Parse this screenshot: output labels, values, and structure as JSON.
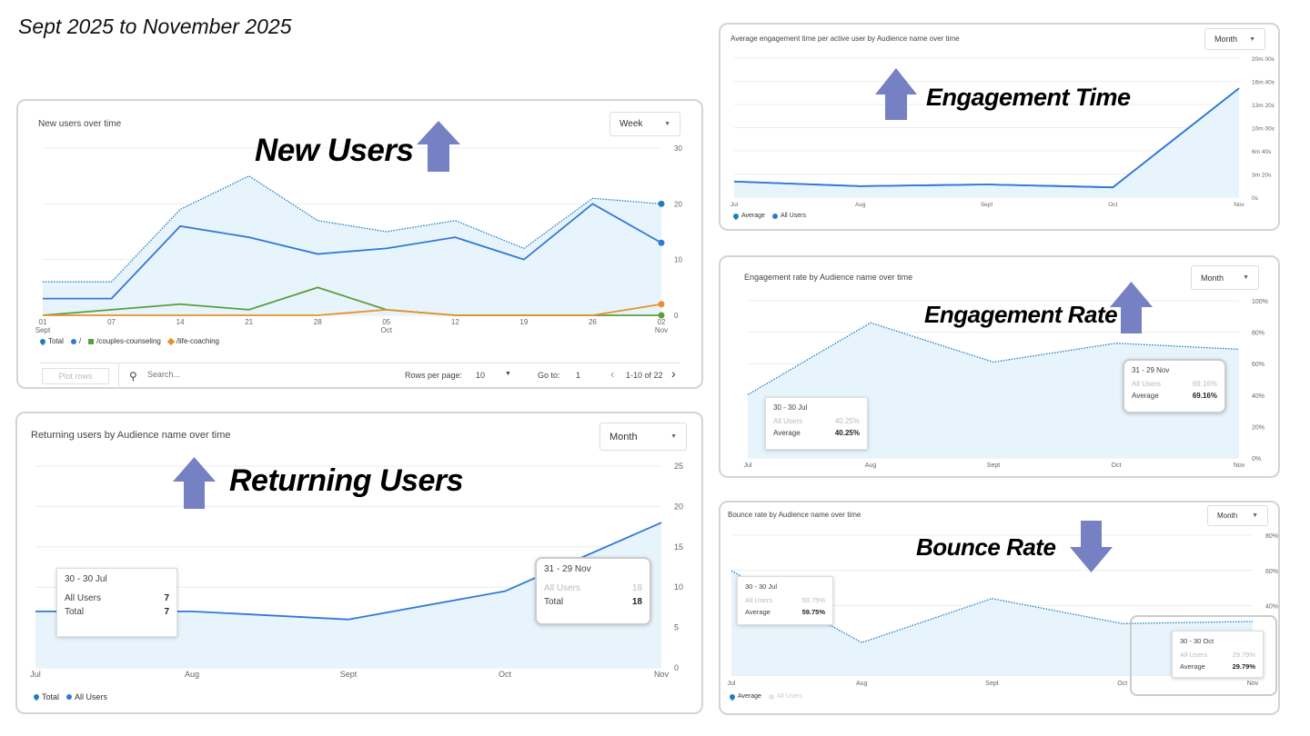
{
  "header": "Sept 2025 to November 2025",
  "annotations": {
    "new_users": "New Users",
    "returning_users": "Returning Users",
    "engagement_time": "Engagement Time",
    "engagement_rate": "Engagement Rate",
    "bounce_rate": "Bounce Rate",
    "arrow_color": "#7581c2"
  },
  "table_controls": {
    "plot_rows": "Plot rows",
    "search_placeholder": "Search...",
    "rows_per_page_label": "Rows per page:",
    "rows_per_page": "10",
    "go_to_label": "Go to:",
    "go_to": "1",
    "range": "1-10 of 22"
  },
  "chart_data": [
    {
      "type": "line",
      "title": "New users over time",
      "period": "Week",
      "categories": [
        "01\nSept",
        "07",
        "14",
        "21",
        "28",
        "05\nOct",
        "12",
        "19",
        "26",
        "02\nNov"
      ],
      "ylim": [
        0,
        30
      ],
      "yticks": [
        0,
        10,
        20,
        30
      ],
      "ytick_labels": [
        "0",
        "10",
        "20",
        "30"
      ],
      "grid": true,
      "legend": "bottom-left",
      "series": [
        {
          "name": "Total",
          "values": [
            6,
            6,
            19,
            25,
            17,
            15,
            17,
            12,
            21,
            20
          ],
          "color": "#1d7fbf",
          "style": "dotted",
          "fill": true,
          "marker": "pin"
        },
        {
          "name": "/",
          "values": [
            3,
            3,
            16,
            14,
            11,
            12,
            14,
            10,
            20,
            13
          ],
          "color": "#3279d6",
          "style": "solid",
          "marker": "circle"
        },
        {
          "name": "/couples-counseling",
          "values": [
            0,
            1,
            2,
            1,
            5,
            1,
            0,
            0,
            0,
            0
          ],
          "color": "#5a9e3f",
          "style": "solid",
          "marker": "square"
        },
        {
          "name": "/life-coaching",
          "values": [
            0,
            0,
            0,
            0,
            0,
            1,
            0,
            0,
            0,
            2
          ],
          "color": "#e8912a",
          "style": "solid",
          "marker": "diamond"
        }
      ]
    },
    {
      "type": "line",
      "title": "Returning users by Audience name over time",
      "period": "Month",
      "categories": [
        "Jul",
        "Aug",
        "Sept",
        "Oct",
        "Nov"
      ],
      "ylim": [
        0,
        25
      ],
      "yticks": [
        0,
        5,
        10,
        15,
        20,
        25
      ],
      "ytick_labels": [
        "0",
        "5",
        "10",
        "15",
        "20",
        "25"
      ],
      "grid": true,
      "legend": "bottom-left",
      "series": [
        {
          "name": "Total",
          "values": [
            7,
            7,
            6,
            9.5,
            18
          ],
          "color": "#1d7fbf",
          "style": "dotted",
          "fill": true,
          "marker": "pin"
        },
        {
          "name": "All Users",
          "values": [
            7,
            7,
            6,
            9.5,
            18
          ],
          "color": "#3279d6",
          "style": "solid",
          "marker": "circle"
        }
      ],
      "tooltips": [
        {
          "date": "30 - 30 Jul",
          "rows": [
            {
              "label": "All Users",
              "value": "7"
            },
            {
              "label": "Total",
              "value": "7"
            }
          ]
        },
        {
          "date": "31 - 29 Nov",
          "rows": [
            {
              "label": "All Users",
              "value": "18"
            },
            {
              "label": "Total",
              "value": "18"
            }
          ]
        }
      ]
    },
    {
      "type": "line",
      "title": "Average engagement time per active user by Audience name over time",
      "period": "Month",
      "categories": [
        "Jul",
        "Aug",
        "Sept",
        "Oct",
        "Nov"
      ],
      "ylim": [
        0,
        1200
      ],
      "yunit": "seconds",
      "yticks": [
        0,
        200,
        400,
        600,
        800,
        1000,
        1200
      ],
      "ytick_labels": [
        "0s",
        "3m 20s",
        "6m 40s",
        "10m 00s",
        "13m 20s",
        "16m 40s",
        "20m 00s"
      ],
      "grid": true,
      "legend": "bottom-left",
      "series": [
        {
          "name": "Average",
          "values": [
            135,
            95,
            110,
            85,
            940
          ],
          "color": "#1d7fbf",
          "style": "solid",
          "fill": true,
          "marker": "pin"
        },
        {
          "name": "All Users",
          "values": [
            135,
            95,
            110,
            85,
            940
          ],
          "color": "#3279d6",
          "style": "solid",
          "marker": "circle"
        }
      ]
    },
    {
      "type": "line",
      "title": "Engagement rate by Audience name over time",
      "period": "Month",
      "categories": [
        "Jul",
        "Aug",
        "Sept",
        "Oct",
        "Nov"
      ],
      "ylim": [
        0,
        100
      ],
      "yticks": [
        0,
        20,
        40,
        60,
        80,
        100
      ],
      "ytick_labels": [
        "0%",
        "20%",
        "40%",
        "60%",
        "80%",
        "100%"
      ],
      "grid": true,
      "series": [
        {
          "name": "Average",
          "values": [
            40.25,
            86,
            61,
            73,
            69.16
          ],
          "color": "#1d7fbf",
          "style": "dotted",
          "fill": true,
          "marker": "pin"
        }
      ],
      "tooltips": [
        {
          "date": "30 - 30 Jul",
          "rows": [
            {
              "label": "All Users",
              "value": "40.25%"
            },
            {
              "label": "Average",
              "value": "40.25%"
            }
          ]
        },
        {
          "date": "31 - 29 Nov",
          "rows": [
            {
              "label": "All Users",
              "value": "69.16%"
            },
            {
              "label": "Average",
              "value": "69.16%"
            }
          ]
        }
      ]
    },
    {
      "type": "line",
      "title": "Bounce rate by Audience name over time",
      "period": "Month",
      "categories": [
        "Jul",
        "Aug",
        "Sept",
        "Oct",
        "Nov"
      ],
      "ylim": [
        0,
        80
      ],
      "yticks": [
        40,
        60,
        80
      ],
      "ytick_labels": [
        "40%",
        "60%",
        "80%"
      ],
      "grid": true,
      "legend": "bottom-left",
      "series": [
        {
          "name": "Average",
          "values": [
            59.75,
            19,
            44,
            29.79,
            31
          ],
          "color": "#1d7fbf",
          "style": "dotted",
          "fill": true,
          "marker": "pin"
        },
        {
          "name": "All Users",
          "values": [
            59.75,
            19,
            44,
            29.79,
            31
          ],
          "color": "#c5d9ee",
          "style": "none",
          "marker": "circle"
        }
      ],
      "tooltips": [
        {
          "date": "30 - 30 Jul",
          "rows": [
            {
              "label": "All Users",
              "value": "59.75%"
            },
            {
              "label": "Average",
              "value": "59.75%"
            }
          ]
        },
        {
          "date": "30 - 30 Oct",
          "rows": [
            {
              "label": "All Users",
              "value": "29.79%"
            },
            {
              "label": "Average",
              "value": "29.79%"
            }
          ]
        }
      ]
    }
  ]
}
